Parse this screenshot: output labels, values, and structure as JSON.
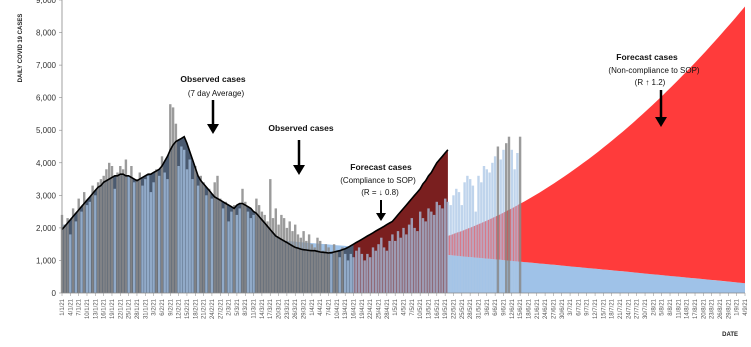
{
  "chart_data": {
    "type": "bar",
    "title": "",
    "ylabel": "DAILY COVID 19 CASES",
    "xlabel": "DATE",
    "ylim": [
      0,
      9000
    ],
    "yticks": [
      "0",
      "1,000",
      "2,000",
      "3,000",
      "4,000",
      "5,000",
      "6,000",
      "7,000",
      "8,000",
      "9,000"
    ],
    "x_start": "1/1/21",
    "x_end": "4/9/21",
    "x_ticks": [
      "1/1/21",
      "4/1/21",
      "7/1/21",
      "10/1/21",
      "13/1/21",
      "16/1/21",
      "19/1/21",
      "22/1/21",
      "25/1/21",
      "28/1/21",
      "31/1/21",
      "3/2/21",
      "6/2/21",
      "9/2/21",
      "12/2/21",
      "15/2/21",
      "18/2/21",
      "21/2/21",
      "24/2/21",
      "27/2/21",
      "2/3/21",
      "5/3/21",
      "8/3/21",
      "11/3/21",
      "14/3/21",
      "17/3/21",
      "20/3/21",
      "23/3/21",
      "26/3/21",
      "29/3/21",
      "1/4/21",
      "4/4/21",
      "7/4/21",
      "10/4/21",
      "13/4/21",
      "16/4/21",
      "19/4/21",
      "22/4/21",
      "25/4/21",
      "28/4/21",
      "1/5/21",
      "4/5/21",
      "7/5/21",
      "10/5/21",
      "13/5/21",
      "16/5/21",
      "19/5/21",
      "22/5/21",
      "25/5/21",
      "28/5/21",
      "31/5/21",
      "3/6/21",
      "6/6/21",
      "9/6/21",
      "12/6/21",
      "15/6/21",
      "18/6/21",
      "21/6/21",
      "24/6/21",
      "27/6/21",
      "30/6/21",
      "3/7/21",
      "6/7/21",
      "9/7/21",
      "12/7/21",
      "15/7/21",
      "18/7/21",
      "21/7/21",
      "24/7/21",
      "27/7/21",
      "30/7/21",
      "2/8/21",
      "5/8/21",
      "8/8/21",
      "11/8/21",
      "14/8/21",
      "17/8/21",
      "20/8/21",
      "23/8/21",
      "26/8/21",
      "29/8/21",
      "1/9/21",
      "4/9/21"
    ],
    "observed_daily_cases": [
      2400,
      2100,
      2300,
      1800,
      2600,
      2200,
      2900,
      2500,
      3100,
      2700,
      2800,
      3300,
      3000,
      3400,
      3500,
      3600,
      3800,
      4000,
      3900,
      3200,
      3700,
      3900,
      3800,
      4100,
      3600,
      3900,
      3400,
      3500,
      3700,
      3300,
      3500,
      3600,
      3100,
      3400,
      3800,
      3600,
      4200,
      3700,
      3500,
      5800,
      5700,
      5200,
      3900,
      4500,
      4400,
      3800,
      4100,
      3500,
      3900,
      3300,
      3600,
      3400,
      3000,
      3200,
      2900,
      3400,
      3600,
      2900,
      2600,
      2800,
      2200,
      2500,
      2700,
      2400,
      2600,
      3200,
      2800,
      2500,
      2300,
      2400,
      2900,
      2700,
      2500,
      2400,
      2200,
      3500,
      2300,
      2600,
      2100,
      2400,
      2300,
      2000,
      2200,
      1900,
      2100,
      1800,
      1700,
      1900,
      1600,
      1800,
      1500,
      1400,
      1700,
      1600,
      1300,
      1500,
      1400,
      1200,
      1500,
      1300,
      1100,
      1400,
      1200,
      1000,
      1200,
      1100,
      1300,
      1400,
      1200,
      1000,
      1200,
      1100,
      1400,
      1300,
      1500,
      1700,
      1400,
      1300,
      1600,
      1800,
      1600,
      1900,
      1700,
      2000,
      1800,
      2100,
      2300,
      2000,
      1900,
      2500,
      2300,
      2200,
      2600,
      2500,
      2400,
      2800,
      2700,
      2600,
      2900,
      2800,
      2700,
      3000,
      3200,
      3100,
      2700,
      3400,
      3600,
      3500,
      3300,
      2500,
      3600,
      3400,
      3900,
      3800,
      3700,
      4000,
      4200,
      4500,
      4100,
      4400,
      4600,
      4800,
      4400,
      3800,
      4300,
      4800
    ],
    "series": [
      {
        "name": "",
        "values": [
          1950,
          2050,
          2150,
          2250,
          2350,
          2450,
          2550,
          2650,
          2750,
          2850,
          2950,
          3050,
          3150,
          3250,
          3300,
          3400,
          3450,
          3500,
          3550,
          3600,
          3600,
          3650,
          3650,
          3600,
          3600,
          3550,
          3500,
          3450,
          3500,
          3550,
          3600,
          3650,
          3650,
          3700,
          3750,
          3800,
          3900,
          4050,
          4200,
          4400,
          4550,
          4650,
          4700,
          4750,
          4800,
          4600,
          4350,
          4100,
          3850,
          3600,
          3450,
          3350,
          3250,
          3150,
          3050,
          2950,
          2900,
          2850,
          2800,
          2750,
          2700,
          2650,
          2600,
          2700,
          2750,
          2750,
          2700,
          2650,
          2600,
          2500,
          2450,
          2350,
          2250,
          2150,
          2050,
          1950,
          1850,
          1750,
          1700,
          1650,
          1600,
          1550,
          1500,
          1450,
          1400,
          1380,
          1350,
          1330,
          1320,
          1310,
          1300,
          1300,
          1280,
          1260,
          1250,
          1240,
          1230,
          1240,
          1260,
          1280,
          1300,
          1330,
          1360,
          1400,
          1450,
          1500,
          1550,
          1600,
          1650,
          1700,
          1750,
          1800,
          1850,
          1900,
          1950,
          2000,
          2050,
          2100,
          2150,
          2200,
          2300,
          2400,
          2500,
          2600,
          2700,
          2800,
          2900,
          3000,
          3100,
          3200,
          3350,
          3450,
          3600,
          3700,
          3850,
          4000,
          4100,
          4200,
          4300,
          4400
        ]
      },
      {
        "name": "",
        "x_range": [
          "1/1/21",
          "4/9/21"
        ]
      },
      {
        "name": "",
        "x_range": [
          "16/4/21",
          "4/9/21"
        ]
      }
    ],
    "forecast_band_compliance": {
      "start_value": 2100,
      "end_value": 300
    },
    "forecast_band_noncompliance": {
      "start_value": 1250,
      "end_value": 8800
    }
  },
  "annotations": [
    {
      "title": "Observed cases",
      "subtitle": "(7 day Average)"
    },
    {
      "title": "Observed cases",
      "subtitle": ""
    },
    {
      "title": "Forecast cases",
      "subtitle": "(Compliance to SOP)",
      "subtitle2": "(R = ↓ 0.8)"
    },
    {
      "title": "Forecast cases",
      "subtitle": "(Non-compliance to SOP)",
      "subtitle2": "(R ↑ 1.2)"
    }
  ],
  "colors": {
    "observed_bar": "#8a8a8a",
    "observed_bar_light": "#a9c6e6",
    "dark_fill": "#4a5a70",
    "light_fill": "#9fc2e8",
    "forecast_fill": "#ff3b3b",
    "forecast_dark": "#7a1f1f",
    "avg_line": "#000000",
    "axis": "#888888"
  }
}
